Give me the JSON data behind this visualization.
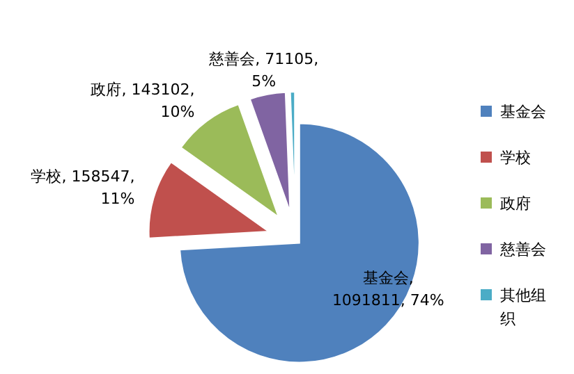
{
  "chart_data": {
    "type": "pie",
    "categories": [
      "基金会",
      "学校",
      "政府",
      "慈善会",
      "其他组织"
    ],
    "values": [
      1091811,
      158547,
      143102,
      71105,
      9000
    ],
    "colors": [
      "#4f81bd",
      "#c0504d",
      "#9bbb59",
      "#8064a2",
      "#4bacc6"
    ],
    "value_labels": [
      "基金会,\n1091811, 74%",
      "学校, 158547,\n11%",
      "政府, 143102,\n10%",
      "慈善会, 71105,\n5%",
      null
    ],
    "legend": "right"
  }
}
